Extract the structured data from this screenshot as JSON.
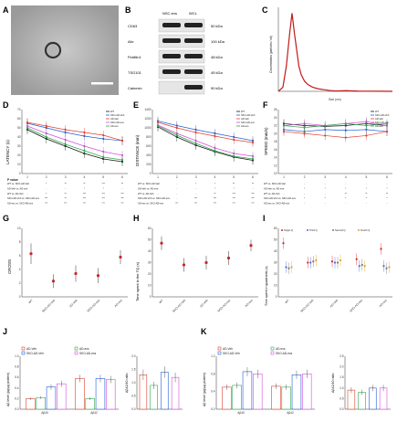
{
  "panel_labels": [
    "A",
    "B",
    "C",
    "D",
    "E",
    "F",
    "G",
    "H",
    "I",
    "J",
    "K"
  ],
  "scale_bar": {
    "color": "#ffffff"
  },
  "western_blot": {
    "columns": [
      "NSC-exs",
      "WCL"
    ],
    "rows": [
      {
        "protein": "CD63",
        "size": "50 kDa"
      },
      {
        "protein": "Alix",
        "size": "100 kDa"
      },
      {
        "protein": "Flotillin1",
        "size": "48 kDa"
      },
      {
        "protein": "TSG101",
        "size": "45 kDa"
      },
      {
        "protein": "Calnexin",
        "size": "90 kDa"
      }
    ]
  },
  "colors": {
    "WT": "#111111",
    "SKO-AD-Veh": "#1f5fd6",
    "AD-Veh": "#e0412b",
    "SKO-AD-exs": "#d64fd6",
    "AD-exs": "#2fa84f",
    "nta": "#c41a1a",
    "Target": "#e02020",
    "Third": "#5566dd",
    "Second": "#7a7a7a",
    "Fourth": "#e7a21c"
  },
  "pvalue": {
    "title": "P value",
    "rows_D": [
      "WT vs. SKO-AD-Veh",
      "AD-Veh vs. AD-exs",
      "WT vs. AD-Veh",
      "SKO-AD-Veh vs. SKO-AD-exs",
      "AD-exs vs. SKO-AD-exs"
    ],
    "rows_E": [
      "WT vs. SKO-AD-Veh",
      "AD-Veh vs. AD-exs",
      "WT vs. AD-Veh",
      "SKO-AD-Veh vs. SKO-AD-exs",
      "AD-exs vs. SKO-AD-exs"
    ],
    "rows_F": [
      "WT vs. SKO-AD-Veh",
      "AD-Veh vs. AD-exs",
      "WT vs. AD-Veh",
      "SKO-AD-Veh vs. SKO-AD-exs",
      "AD-exs vs. SKO-AD-exs"
    ],
    "marks_D": [
      [
        "-",
        "*",
        "**",
        "**",
        "***",
        "**"
      ],
      [
        "-",
        "-",
        "-",
        "*",
        "*",
        "-"
      ],
      [
        "-",
        "*",
        "**",
        "***",
        "***",
        "***"
      ],
      [
        "-",
        "***",
        "**",
        "***",
        "***",
        "***"
      ],
      [
        "-",
        "***",
        "***",
        "***",
        "***",
        "***"
      ]
    ],
    "marks_E": [
      [
        "-",
        "-",
        "*",
        "*",
        "**",
        "**"
      ],
      [
        "-",
        "-",
        "-",
        "*",
        "*",
        "-"
      ],
      [
        "-",
        "-",
        "-",
        "**",
        "***",
        "***"
      ],
      [
        "-",
        "-",
        "***",
        "***",
        "***",
        "***"
      ],
      [
        "-",
        "***",
        "***",
        "***",
        "***",
        "***"
      ]
    ],
    "marks_F": [
      [
        "-",
        "-",
        "-",
        "-",
        "-",
        "-"
      ],
      [
        "-",
        "*",
        "*",
        "*",
        "*",
        "*"
      ],
      [
        "-",
        "-",
        "-",
        "**",
        "**",
        "**"
      ],
      [
        "-",
        "*",
        "*",
        "*",
        "*",
        "*"
      ],
      [
        "-",
        "-",
        "-",
        "-",
        "-",
        "-"
      ]
    ]
  },
  "chart_data": [
    {
      "panel": "C",
      "type": "line",
      "xlabel": "Size (nm)",
      "ylabel": "Concentration (particles / ml)",
      "xlim": [
        0,
        1000
      ],
      "ylim": [
        0,
        10
      ],
      "x": [
        0,
        40,
        70,
        100,
        120,
        140,
        160,
        180,
        200,
        230,
        260,
        300,
        350,
        400,
        450,
        500,
        600,
        700,
        800,
        900,
        1000
      ],
      "values": [
        0,
        0.5,
        3,
        7,
        9.3,
        7,
        5,
        3,
        2,
        1.2,
        0.8,
        0.5,
        0.3,
        0.2,
        0.1,
        0.05,
        0.08,
        0.03,
        0.02,
        0.01,
        0
      ]
    },
    {
      "panel": "D",
      "type": "line",
      "ylabel": "LATENCY (s)",
      "ylim": [
        0,
        70
      ],
      "categories": [
        "1",
        "2",
        "3",
        "4",
        "5",
        "6"
      ],
      "yticks": [
        "0",
        "10",
        "20",
        "30",
        "40",
        "50",
        "60",
        "70"
      ],
      "legend": [
        "WT",
        "SKO-AD-Veh",
        "AD-Veh",
        "SKO-AD-exs",
        "AD-exs"
      ],
      "series": [
        {
          "name": "WT",
          "values": [
            48,
            38,
            30,
            22,
            16,
            13
          ]
        },
        {
          "name": "SKO-AD-Veh",
          "values": [
            55,
            50,
            45,
            41,
            38,
            36
          ]
        },
        {
          "name": "AD-Veh",
          "values": [
            56,
            52,
            48,
            45,
            42,
            36
          ]
        },
        {
          "name": "SKO-AD-exs",
          "values": [
            52,
            44,
            37,
            30,
            24,
            20
          ]
        },
        {
          "name": "AD-exs",
          "values": [
            50,
            40,
            32,
            25,
            18,
            15
          ]
        }
      ]
    },
    {
      "panel": "E",
      "type": "line",
      "ylabel": "DISTANCE (mm)",
      "ylim": [
        0,
        1400
      ],
      "categories": [
        "1",
        "2",
        "3",
        "4",
        "5",
        "6"
      ],
      "yticks": [
        "0",
        "200",
        "400",
        "600",
        "800",
        "1000",
        "1200",
        "1400"
      ],
      "legend": [
        "WT",
        "SKO-AD-Veh",
        "AD-Veh",
        "SKO-AD-exs",
        "AD-exs"
      ],
      "series": [
        {
          "name": "WT",
          "values": [
            1020,
            800,
            620,
            480,
            360,
            290
          ]
        },
        {
          "name": "SKO-AD-Veh",
          "values": [
            1150,
            1050,
            960,
            880,
            800,
            720
          ]
        },
        {
          "name": "AD-Veh",
          "values": [
            1120,
            1000,
            900,
            820,
            740,
            680
          ]
        },
        {
          "name": "SKO-AD-exs",
          "values": [
            1060,
            880,
            720,
            560,
            440,
            380
          ]
        },
        {
          "name": "AD-exs",
          "values": [
            1040,
            840,
            660,
            500,
            380,
            320
          ]
        }
      ]
    },
    {
      "panel": "F",
      "type": "line",
      "ylabel": "SPEED (mm/s)",
      "ylim": [
        10,
        26
      ],
      "categories": [
        "1",
        "2",
        "3",
        "4",
        "5",
        "6"
      ],
      "yticks": [
        "10",
        "12",
        "14",
        "16",
        "18",
        "20",
        "22",
        "24",
        "26"
      ],
      "legend": [
        "WT",
        "SKO-AD-Veh",
        "AD-Veh",
        "SKO-AD-exs",
        "AD-exs"
      ],
      "series": [
        {
          "name": "WT",
          "values": [
            22.5,
            22,
            21.8,
            22,
            22.5,
            22
          ]
        },
        {
          "name": "SKO-AD-Veh",
          "values": [
            21,
            20.5,
            21,
            20.8,
            21,
            20.5
          ]
        },
        {
          "name": "AD-Veh",
          "values": [
            20.5,
            20,
            19.5,
            19,
            19.5,
            20.5
          ]
        },
        {
          "name": "SKO-AD-exs",
          "values": [
            22,
            22.5,
            22,
            22.5,
            23,
            22
          ]
        },
        {
          "name": "AD-exs",
          "values": [
            22,
            21.5,
            22,
            22.5,
            22,
            22.5
          ]
        }
      ]
    },
    {
      "panel": "G",
      "type": "scatter",
      "ylabel": "CROSS",
      "ylim": [
        0,
        10
      ],
      "yticks": [
        "0",
        "2",
        "4",
        "6",
        "8",
        "10"
      ],
      "categories": [
        "WT",
        "SKO-AD-Veh",
        "AD-Veh",
        "SKO-AD-exs",
        "AD-exs"
      ],
      "values": [
        6.3,
        2.3,
        3.4,
        3.1,
        5.8
      ],
      "err": [
        1.5,
        1.0,
        1.2,
        1.1,
        1.0
      ]
    },
    {
      "panel": "H",
      "type": "scatter",
      "ylabel": "Time spent in the TQ (s)",
      "ylim": [
        0,
        60
      ],
      "yticks": [
        "0",
        "10",
        "20",
        "30",
        "40",
        "50",
        "60"
      ],
      "categories": [
        "WT",
        "SKO-AD-Veh",
        "AD-Veh",
        "SKO-AD-exs",
        "AD-exs"
      ],
      "values": [
        47,
        28,
        30,
        34,
        45
      ],
      "err": [
        6,
        6,
        6,
        6,
        5
      ]
    },
    {
      "panel": "I",
      "type": "scatter",
      "ylabel": "Time spent in quadrants (s)",
      "ylim": [
        0,
        60
      ],
      "yticks": [
        "0",
        "10",
        "20",
        "30",
        "40",
        "50",
        "60"
      ],
      "categories": [
        "WT",
        "SKO-AD-Veh",
        "AD-Veh",
        "SKO-AD-exs",
        "AD-exs"
      ],
      "legend": [
        "Target Q",
        "Third Q",
        "Second Q",
        "Fourth Q"
      ],
      "series": [
        {
          "name": "Target Q",
          "values": [
            47,
            30,
            31,
            33,
            42
          ]
        },
        {
          "name": "Third Q",
          "values": [
            26,
            30,
            30,
            27,
            27
          ]
        },
        {
          "name": "Second Q",
          "values": [
            25,
            31,
            30,
            28,
            25
          ]
        },
        {
          "name": "Fourth Q",
          "values": [
            26,
            32,
            32,
            27,
            26
          ]
        }
      ]
    },
    {
      "panel": "J",
      "type": "bar",
      "ylabel": "Aβ level (pg/μg protein)",
      "ylim": [
        0,
        1.0
      ],
      "yticks": [
        "0.0",
        "0.2",
        "0.4",
        "0.6",
        "0.8",
        "1.0"
      ],
      "categories": [
        "Aβ40",
        "Aβ42"
      ],
      "legend": [
        "AD-Veh",
        "AD-exs",
        "SKO-AD-Veh",
        "SKO-AD-exs"
      ],
      "series": [
        {
          "name": "AD-Veh",
          "values": [
            0.2,
            0.58
          ]
        },
        {
          "name": "AD-exs",
          "values": [
            0.22,
            0.2
          ]
        },
        {
          "name": "SKO-AD-Veh",
          "values": [
            0.42,
            0.58
          ]
        },
        {
          "name": "SKO-AD-exs",
          "values": [
            0.48,
            0.56
          ]
        }
      ]
    },
    {
      "panel": "J2",
      "type": "bar",
      "ylabel": "Aβ42/40 ratio",
      "ylim": [
        0,
        2.0
      ],
      "yticks": [
        "0.0",
        "0.5",
        "1.0",
        "1.5",
        "2.0"
      ],
      "values": [
        1.3,
        0.9,
        1.4,
        1.2
      ]
    },
    {
      "panel": "K",
      "type": "bar",
      "ylabel": "Aβ level (pg/μg protein)",
      "ylim": [
        0,
        1.2
      ],
      "yticks": [
        "0.0",
        "0.4",
        "0.8",
        "1.2"
      ],
      "categories": [
        "Aβ40",
        "Aβ42"
      ],
      "legend": [
        "AD-Veh",
        "AD-exs",
        "SKO-AD-Veh",
        "SKO-AD-exs"
      ],
      "series": [
        {
          "name": "AD-Veh",
          "values": [
            0.5,
            0.52
          ]
        },
        {
          "name": "AD-exs",
          "values": [
            0.54,
            0.5
          ]
        },
        {
          "name": "SKO-AD-Veh",
          "values": [
            0.85,
            0.78
          ]
        },
        {
          "name": "SKO-AD-exs",
          "values": [
            0.8,
            0.8
          ]
        }
      ]
    },
    {
      "panel": "K2",
      "type": "bar",
      "ylabel": "Aβ42/40 ratio",
      "ylim": [
        0,
        2.5
      ],
      "yticks": [
        "0.0",
        "0.5",
        "1.0",
        "1.5",
        "2.0",
        "2.5"
      ],
      "values": [
        0.9,
        0.8,
        1.0,
        1.0
      ]
    }
  ]
}
